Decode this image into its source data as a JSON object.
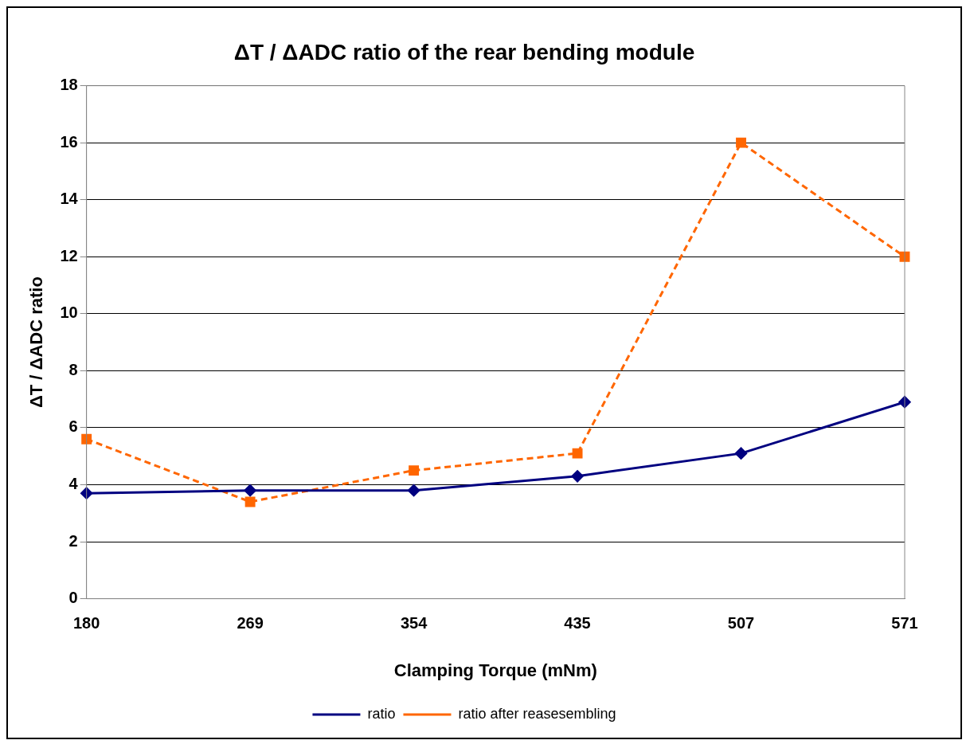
{
  "chart_data": {
    "type": "line",
    "title": "ΔT / ΔADC ratio of the rear bending module",
    "xlabel": "Clamping Torque (mNm)",
    "ylabel": "ΔT / ΔADC ratio",
    "categories": [
      "180",
      "269",
      "354",
      "435",
      "507",
      "571"
    ],
    "series": [
      {
        "name": "ratio",
        "color": "#000080",
        "values": [
          3.7,
          3.8,
          3.8,
          4.3,
          5.1,
          6.9
        ],
        "marker": "diamond",
        "line_style": "solid"
      },
      {
        "name": "ratio after reasesembling",
        "color": "#ff6600",
        "values": [
          5.6,
          3.4,
          4.5,
          5.1,
          16.0,
          12.0
        ],
        "marker": "square",
        "line_style": "dashed"
      }
    ],
    "ylim": [
      0,
      18
    ],
    "yticks": [
      0,
      2,
      4,
      6,
      8,
      10,
      12,
      14,
      16,
      18
    ],
    "grid": "y",
    "legend": "bottom"
  }
}
